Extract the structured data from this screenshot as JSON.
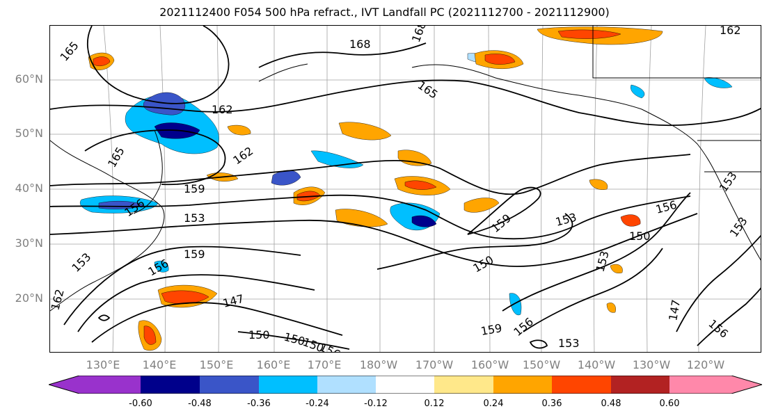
{
  "title": "2021112400 F054 500 hPa refract., IVT Landfall PC (2021112700 - 2021112900)",
  "lat_labels": [
    "60°N",
    "50°N",
    "40°N",
    "30°N",
    "20°N"
  ],
  "lon_labels": [
    "130°E",
    "140°E",
    "150°E",
    "160°E",
    "170°E",
    "180°W",
    "170°W",
    "160°W",
    "150°W",
    "140°W",
    "130°W",
    "120°W"
  ],
  "contour_labels": [
    "165",
    "168",
    "168",
    "165",
    "162",
    "162",
    "162",
    "165",
    "159",
    "156",
    "153",
    "159",
    "156",
    "153",
    "147",
    "159",
    "150",
    "153",
    "150",
    "156",
    "153",
    "150",
    "153",
    "147",
    "156",
    "159",
    "156",
    "153",
    "150",
    "150",
    "156",
    "162",
    "153"
  ],
  "colorbar": {
    "ticks": [
      "-0.60",
      "-0.48",
      "-0.36",
      "-0.24",
      "-0.12",
      "0.12",
      "0.24",
      "0.36",
      "0.48",
      "0.60"
    ],
    "colors": [
      "#9932cc",
      "#00008b",
      "#3a55c8",
      "#00bfff",
      "#b0e0ff",
      "#ffffff",
      "#ffe88a",
      "#ffa500",
      "#ff4500",
      "#b22222",
      "#ff88aa"
    ]
  },
  "colors": {
    "contour": "#000000",
    "grid": "#a0a0a0",
    "axis_labels": "#808080"
  }
}
